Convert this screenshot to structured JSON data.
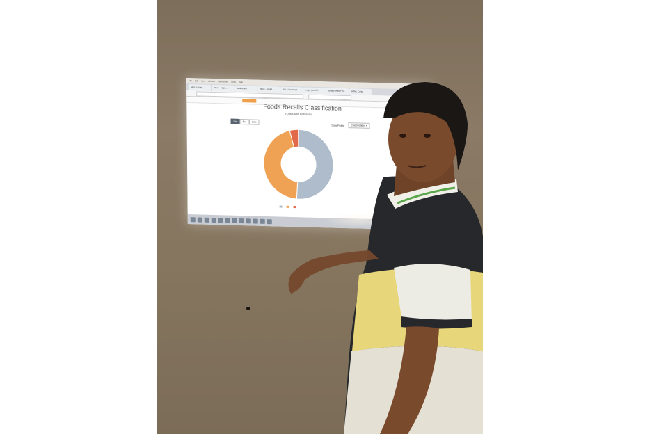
{
  "browser": {
    "menu": [
      "File",
      "Edit",
      "View",
      "History",
      "Bookmarks",
      "Tools",
      "Help"
    ],
    "tabs": [
      "Mail - Umag...",
      "Inbox - Major...",
      "Dashboard",
      "Inbox - Umag...",
      "IDA - Download",
      "major-java/Ri...",
      "Binary Mark F S...",
      "HTML Curso"
    ],
    "close_glyph": "x"
  },
  "chart_page": {
    "title": "Foods Recalls Classification",
    "subtitle": "(Click Graph for Details)",
    "chart_buttons": [
      "Pie",
      "Bar",
      "Line"
    ],
    "fields_label": "Data Fields:",
    "fields_value": "Classification ▾"
  },
  "chart_data": {
    "type": "pie",
    "categories": [
      "",
      "",
      ""
    ],
    "values": [
      51,
      45,
      4
    ],
    "colors": [
      "#aebccb",
      "#efa254",
      "#e2684a"
    ]
  },
  "colors": {
    "wall": "#86765f",
    "screen": "#eef1f3",
    "shirt_dark": "#26282b",
    "shirt_yellow": "#e8d67a"
  }
}
